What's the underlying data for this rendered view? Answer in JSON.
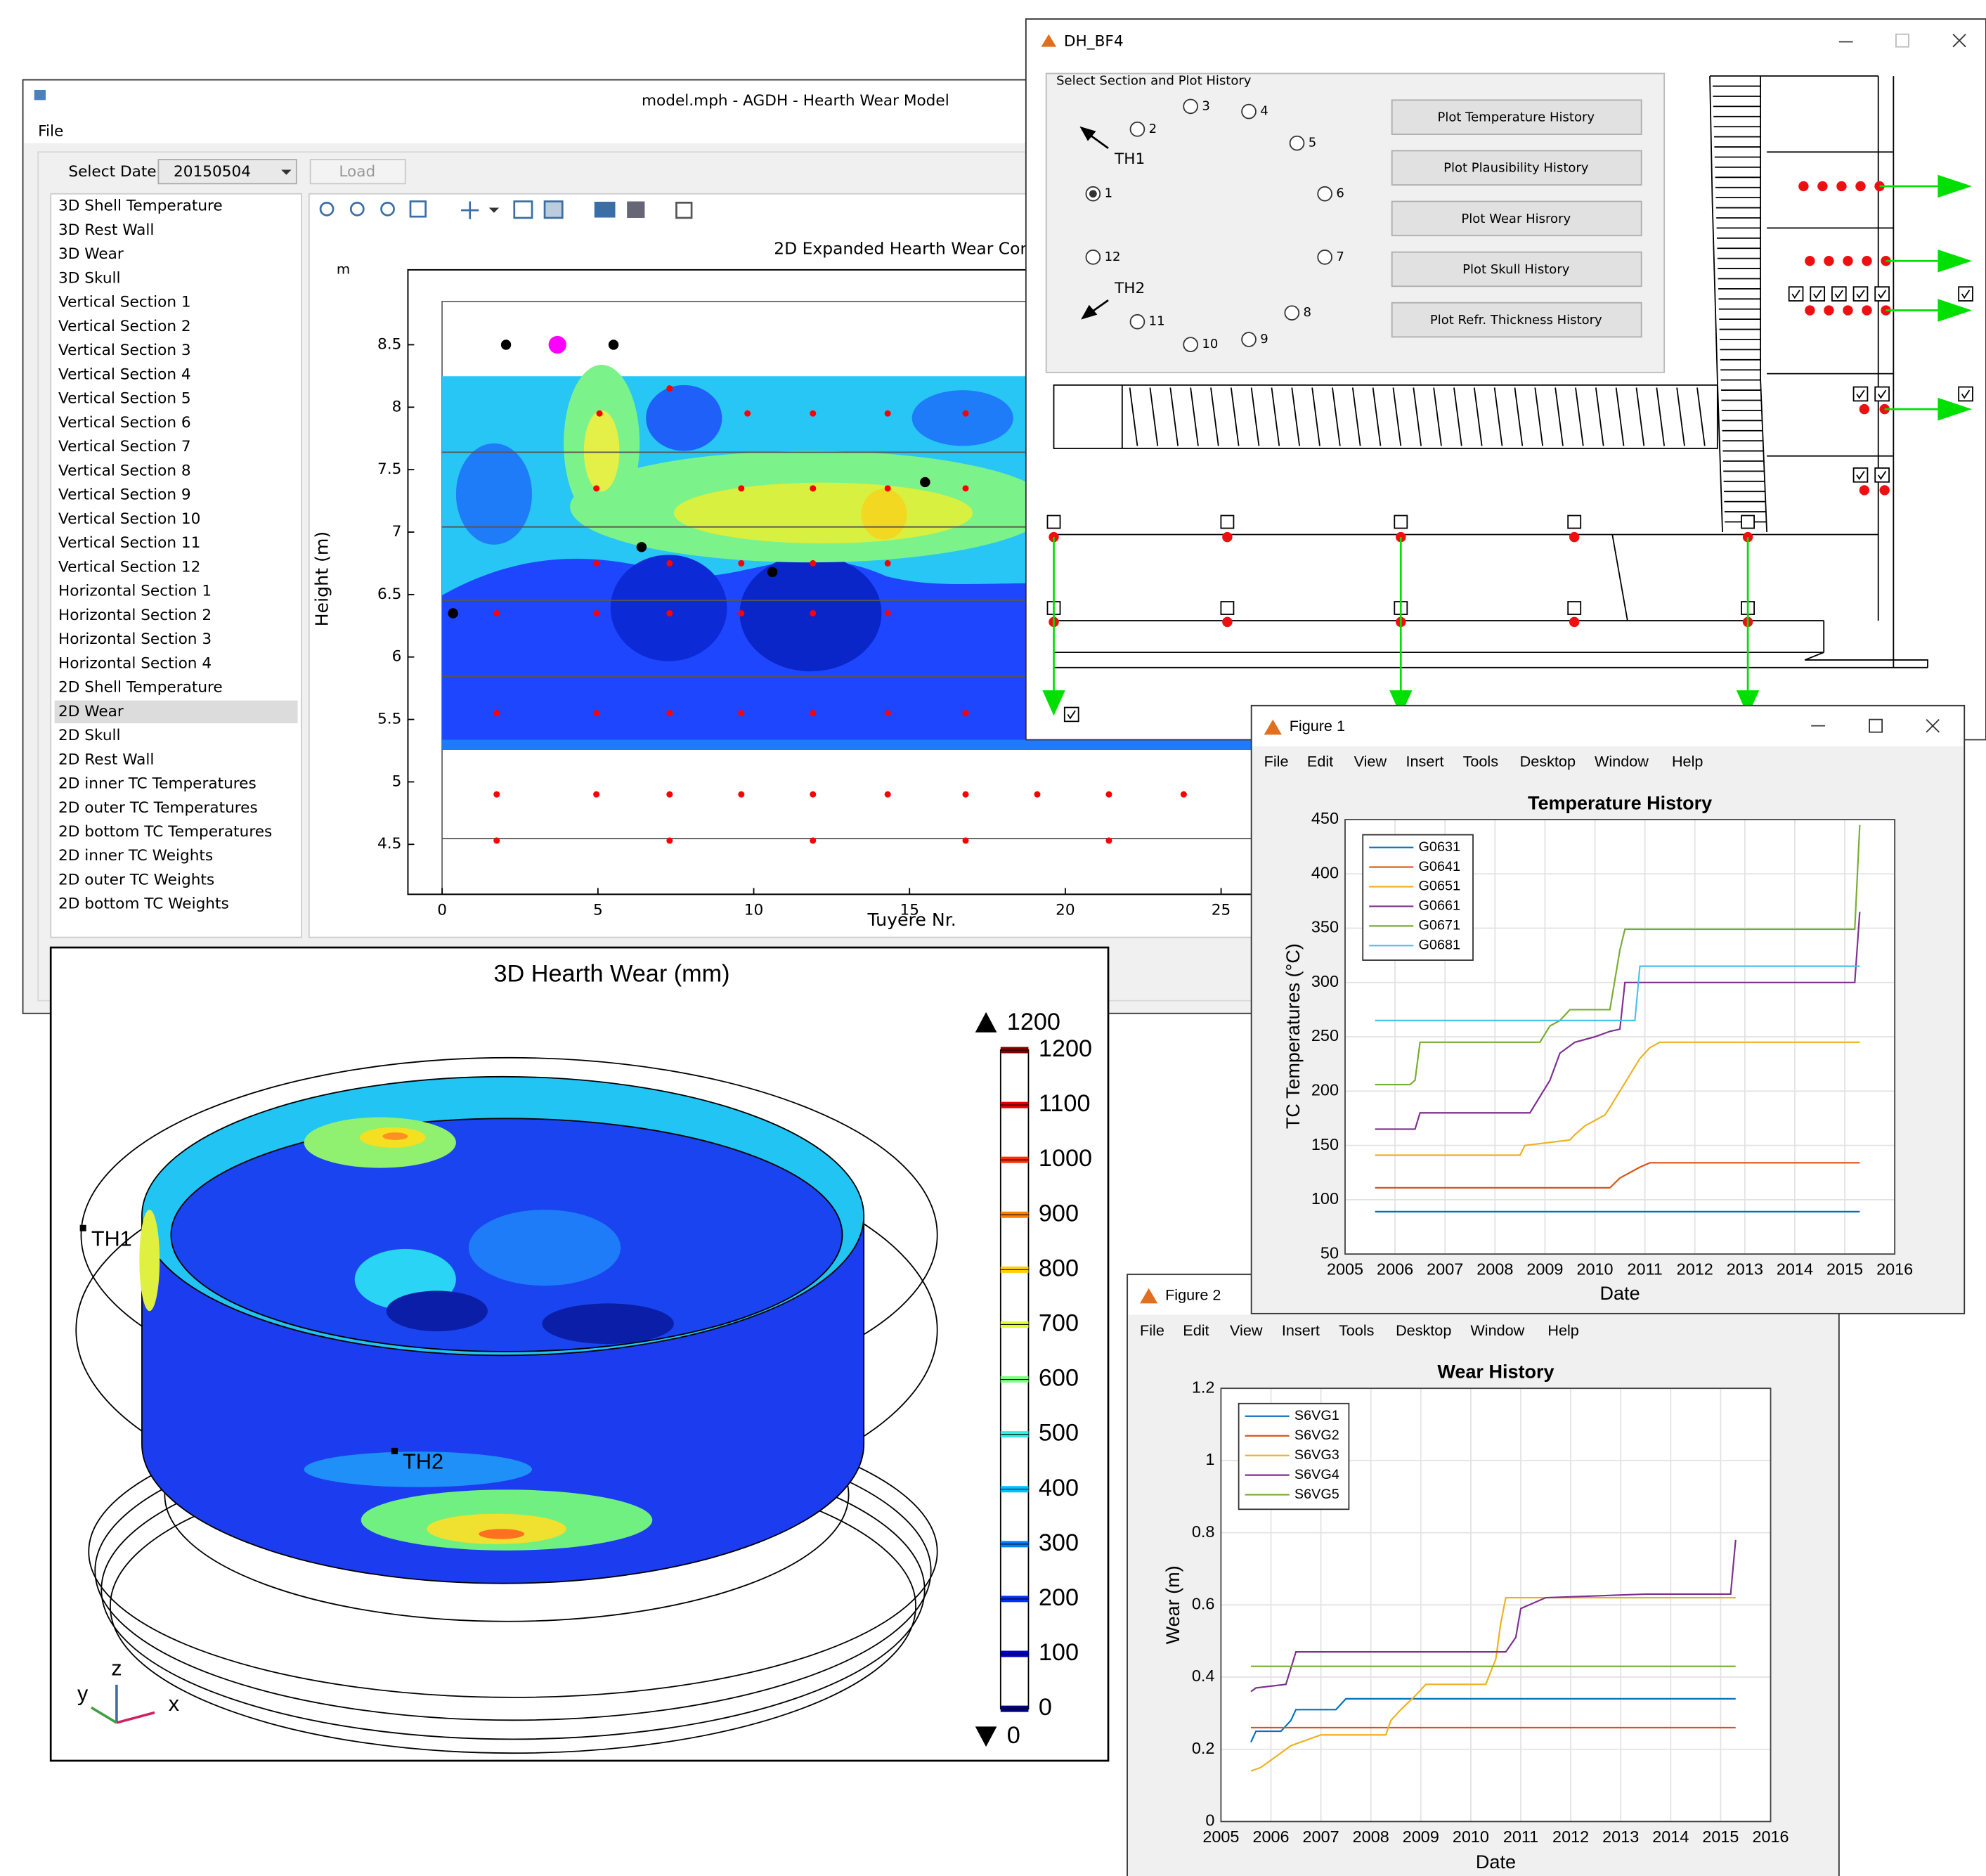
{
  "main_window": {
    "title": "model.mph - AGDH - Hearth Wear Model",
    "menu": [
      "File"
    ],
    "select_date_label": "Select Date:",
    "select_date_value": "20150504",
    "load_button": "Load",
    "tree_items": [
      "3D Shell Temperature",
      "3D Rest Wall",
      "3D Wear",
      "3D Skull",
      "Vertical Section 1",
      "Vertical Section 2",
      "Vertical Section 3",
      "Vertical Section 4",
      "Vertical Section 5",
      "Vertical Section 6",
      "Vertical Section 7",
      "Vertical Section 8",
      "Vertical Section 9",
      "Vertical Section 10",
      "Vertical Section 11",
      "Vertical Section 12",
      "Horizontal Section 1",
      "Horizontal Section 2",
      "Horizontal Section 3",
      "Horizontal Section 4",
      "2D Shell Temperature",
      "2D Wear",
      "2D Skull",
      "2D Rest Wall",
      "2D inner TC Temperatures",
      "2D outer TC Temperatures",
      "2D bottom TC Temperatures",
      "2D inner TC Weights",
      "2D outer TC Weights",
      "2D bottom TC Weights"
    ],
    "selected_item": 21
  },
  "wear_3d": {
    "title": "3D Hearth Wear (mm)",
    "colorbar_ticks": [
      0,
      100,
      200,
      300,
      400,
      500,
      600,
      700,
      800,
      900,
      1000,
      1100,
      1200
    ],
    "colorbar_colors": [
      "#00007f",
      "#0000c8",
      "#0030ff",
      "#0080ff",
      "#00c0ff",
      "#30f0e0",
      "#80ff80",
      "#e0ff30",
      "#ffd000",
      "#ff8000",
      "#ff3000",
      "#e00000",
      "#800000"
    ],
    "max": 1200,
    "min": 0,
    "markers": [
      "TH1",
      "TH2"
    ],
    "axes": [
      "x",
      "y",
      "z"
    ]
  },
  "dh_window": {
    "title": "DH_BF4",
    "group_title": "Select Section and Plot History",
    "radios": [
      "1",
      "2",
      "3",
      "4",
      "5",
      "6",
      "7",
      "8",
      "9",
      "10",
      "11",
      "12"
    ],
    "selected_radio": 0,
    "arrows": [
      "TH1",
      "TH2"
    ],
    "buttons": [
      "Plot Temperature History",
      "Plot Plausibility History",
      "Plot Wear Hisrory",
      "Plot Skull History",
      "Plot Refr. Thickness History"
    ]
  },
  "figure1": {
    "title": "Figure 1",
    "menu": [
      "File",
      "Edit",
      "View",
      "Insert",
      "Tools",
      "Desktop",
      "Window",
      "Help"
    ]
  },
  "figure2": {
    "title": "Figure 2",
    "menu": [
      "File",
      "Edit",
      "View",
      "Insert",
      "Tools",
      "Desktop",
      "Window",
      "Help"
    ]
  },
  "chart_data": [
    {
      "type": "scatter",
      "title": "2D Expanded Hearth Wear Cont",
      "xlabel": "Tuyere Nr.",
      "ylabel": "Height (m)",
      "y_unit": "m",
      "xlim": [
        -1.1,
        26.5
      ],
      "ylim": [
        4.1,
        9.1
      ],
      "xticks": [
        0,
        5,
        10,
        15,
        20,
        25
      ],
      "yticks": [
        4.5,
        5,
        5.5,
        6,
        6.5,
        7,
        7.5,
        8,
        8.5
      ],
      "grid": false,
      "series": [
        {
          "color": "#ff0000",
          "x": [
            7.3,
            5.05,
            9.8,
            11.9,
            14.3,
            16.8,
            4.95,
            9.6,
            11.9,
            14.3,
            16.8,
            4.95,
            7.3,
            9.6,
            11.9,
            14.3,
            1.75,
            4.95,
            7.3,
            9.6,
            11.9,
            14.3,
            1.75,
            4.95,
            7.3,
            9.6,
            11.9,
            14.3,
            16.8,
            1.75,
            4.95,
            7.3,
            9.6,
            11.9,
            14.3,
            16.8,
            19.1,
            21.4,
            23.8,
            1.75,
            7.3,
            11.9,
            16.8,
            21.4
          ],
          "values": [
            8.15,
            7.95,
            7.95,
            7.95,
            7.95,
            7.95,
            7.35,
            7.35,
            7.35,
            7.35,
            7.35,
            6.75,
            6.75,
            6.75,
            6.75,
            6.75,
            6.35,
            6.35,
            6.35,
            6.35,
            6.35,
            6.35,
            5.55,
            5.55,
            5.55,
            5.55,
            5.55,
            5.55,
            5.55,
            4.9,
            4.9,
            4.9,
            4.9,
            4.9,
            4.9,
            4.9,
            4.9,
            4.9,
            4.9,
            4.53,
            4.53,
            4.53,
            4.53,
            4.53
          ]
        },
        {
          "color": "#000000",
          "x": [
            2.05,
            5.5,
            15.5,
            6.4,
            10.6,
            0.35
          ],
          "values": [
            8.5,
            8.5,
            7.4,
            6.88,
            6.68,
            6.35
          ]
        },
        {
          "color": "#ff00ff",
          "x": [
            3.7
          ],
          "values": [
            8.5
          ]
        }
      ]
    },
    {
      "type": "line",
      "title": "Temperature History",
      "xlabel": "Date",
      "ylabel": "TC Temperatures (°C)",
      "xlim": [
        2005,
        2016
      ],
      "ylim": [
        50,
        450
      ],
      "xticks": [
        2005,
        2006,
        2007,
        2008,
        2009,
        2010,
        2011,
        2012,
        2013,
        2014,
        2015,
        2016
      ],
      "yticks": [
        50,
        100,
        150,
        200,
        250,
        300,
        350,
        400,
        450
      ],
      "grid": true,
      "legend": "upper left",
      "series": [
        {
          "name": "G0631",
          "color": "#0072bd",
          "x": [
            2005.6,
            2015.3
          ],
          "values": [
            89,
            89
          ]
        },
        {
          "name": "G0641",
          "color": "#d95319",
          "x": [
            2005.6,
            2010.3,
            2010.5,
            2010.7,
            2010.9,
            2011.1,
            2015.3
          ],
          "values": [
            111,
            111,
            120,
            125,
            130,
            134,
            134
          ]
        },
        {
          "name": "G0651",
          "color": "#edb120",
          "x": [
            2005.6,
            2008.5,
            2008.6,
            2009.5,
            2009.6,
            2009.8,
            2010.2,
            2010.3,
            2010.5,
            2010.7,
            2010.9,
            2011.1,
            2011.3,
            2015.3
          ],
          "values": [
            141,
            141,
            150,
            155,
            160,
            168,
            178,
            185,
            200,
            215,
            230,
            240,
            245,
            245
          ]
        },
        {
          "name": "G0661",
          "color": "#7e2f8e",
          "x": [
            2005.6,
            2006.4,
            2006.5,
            2008.7,
            2008.9,
            2009.1,
            2009.3,
            2009.6,
            2010,
            2010.3,
            2010.5,
            2010.6,
            2015.2,
            2015.3
          ],
          "values": [
            165,
            165,
            180,
            180,
            195,
            210,
            235,
            245,
            250,
            255,
            257,
            300,
            300,
            365
          ]
        },
        {
          "name": "G0671",
          "color": "#77ac30",
          "x": [
            2005.6,
            2006.3,
            2006.4,
            2006.5,
            2008.9,
            2009.1,
            2009.3,
            2009.5,
            2010.3,
            2010.5,
            2010.6,
            2015.2,
            2015.3
          ],
          "values": [
            206,
            206,
            210,
            245,
            245,
            260,
            265,
            275,
            275,
            330,
            349,
            349,
            445
          ]
        },
        {
          "name": "G0681",
          "color": "#4dbeee",
          "x": [
            2005.6,
            2010.8,
            2010.9,
            2015.3
          ],
          "values": [
            265,
            265,
            315,
            315
          ]
        }
      ]
    },
    {
      "type": "line",
      "title": "Wear History",
      "xlabel": "Date",
      "ylabel": "Wear (m)",
      "xlim": [
        2005,
        2016
      ],
      "ylim": [
        0,
        1.2
      ],
      "xticks": [
        2005,
        2006,
        2007,
        2008,
        2009,
        2010,
        2011,
        2012,
        2013,
        2014,
        2015,
        2016
      ],
      "yticks": [
        0,
        0.2,
        0.4,
        0.6,
        0.8,
        1,
        1.2
      ],
      "grid": true,
      "legend": "upper left",
      "series": [
        {
          "name": "S6VG1",
          "color": "#0072bd",
          "x": [
            2005.6,
            2005.7,
            2006.2,
            2006.4,
            2006.5,
            2007.3,
            2007.5,
            2015.3
          ],
          "values": [
            0.22,
            0.25,
            0.25,
            0.28,
            0.31,
            0.31,
            0.34,
            0.34
          ]
        },
        {
          "name": "S6VG2",
          "color": "#d95319",
          "x": [
            2005.6,
            2015.3
          ],
          "values": [
            0.26,
            0.26
          ]
        },
        {
          "name": "S6VG3",
          "color": "#edb120",
          "x": [
            2005.6,
            2005.8,
            2006,
            2006.2,
            2006.4,
            2007,
            2008.3,
            2008.4,
            2008.6,
            2008.9,
            2009.1,
            2010.3,
            2010.5,
            2010.6,
            2010.7,
            2015.3
          ],
          "values": [
            0.14,
            0.15,
            0.17,
            0.19,
            0.21,
            0.24,
            0.24,
            0.28,
            0.31,
            0.35,
            0.38,
            0.38,
            0.45,
            0.55,
            0.62,
            0.62
          ]
        },
        {
          "name": "S6VG4",
          "color": "#7e2f8e",
          "x": [
            2005.6,
            2005.7,
            2006.3,
            2006.5,
            2010.7,
            2010.9,
            2011,
            2011.5,
            2013.5,
            2015.2,
            2015.3
          ],
          "values": [
            0.36,
            0.37,
            0.38,
            0.47,
            0.47,
            0.51,
            0.59,
            0.62,
            0.63,
            0.63,
            0.78
          ]
        },
        {
          "name": "S6VG5",
          "color": "#77ac30",
          "x": [
            2005.6,
            2015.3
          ],
          "values": [
            0.43,
            0.43
          ]
        }
      ]
    }
  ]
}
